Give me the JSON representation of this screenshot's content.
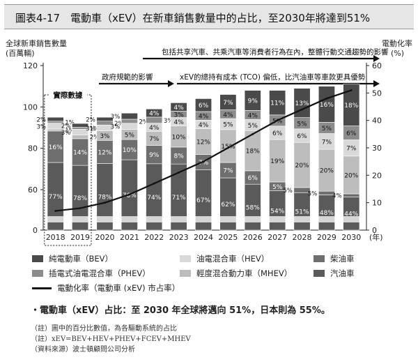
{
  "figure_title": "圖表4-17　電動車（xEV）在新車銷售數量中的占比，至2030年將達到51%",
  "chart_data": {
    "type": "bar",
    "left_axis_label_line1": "全球新車銷售數量",
    "left_axis_label_line2": "(百萬輛)",
    "right_axis_label_line1": "電動化率",
    "right_axis_label_line2": "(%)",
    "xunit": "(年)",
    "ylim": [
      0,
      120
    ],
    "yticks": [
      0,
      60,
      80,
      100,
      120
    ],
    "y2lim": [
      0,
      60
    ],
    "y2ticks": [
      0,
      10,
      20,
      30,
      40,
      50,
      60
    ],
    "years": [
      "2018",
      "2019",
      "2020",
      "2021",
      "2022",
      "2023",
      "2024",
      "2025",
      "2026",
      "2027",
      "2028",
      "2029",
      "2030"
    ],
    "totals": [
      95,
      92,
      95,
      97,
      99,
      102,
      104,
      106,
      108,
      108,
      109,
      110,
      111
    ],
    "series": [
      {
        "name": "純電動車 (BEV)",
        "color": "#4a4a4a",
        "values": [
          2,
          2,
          2,
          3,
          4,
          4,
          6,
          7,
          9,
          11,
          13,
          16,
          18
        ]
      },
      {
        "name": "插電式油電混合車 (PHEV)",
        "color": "#8c8c8c",
        "values": [
          1,
          1,
          2,
          2,
          3,
          3,
          4,
          4,
          4,
          5,
          5,
          5,
          6
        ]
      },
      {
        "name": "油電混合車 (HEV)",
        "color": "#d9d9d9",
        "values": [
          3,
          3,
          3,
          3,
          4,
          4,
          4,
          5,
          5,
          6,
          6,
          7,
          7
        ]
      },
      {
        "name": "輕度混合動力車 (MHEV)",
        "color": "#bdbdbd",
        "values": [
          1,
          2,
          5,
          5,
          7,
          10,
          12,
          15,
          18,
          19,
          20,
          20,
          20
        ]
      },
      {
        "name": "柴油車",
        "color": "#6e6e6e",
        "values": [
          16,
          14,
          12,
          10,
          9,
          8,
          7,
          7,
          6,
          5,
          5,
          5,
          4
        ]
      },
      {
        "name": "汽油車",
        "color": "#5a5a5a",
        "values": [
          77,
          78,
          78,
          76,
          74,
          71,
          67,
          62,
          58,
          54,
          51,
          48,
          44
        ]
      }
    ],
    "labels": [
      [
        "2%",
        "1%",
        "3%",
        "1%",
        "16%",
        "77%"
      ],
      [
        "2%",
        "1%",
        "3%",
        "2%",
        "14%",
        "78%"
      ],
      [
        "2%",
        "2%",
        "3%",
        "3%",
        "12%",
        "78%"
      ],
      [
        "3%",
        "2%",
        "3%",
        "5%",
        "10%",
        "76%"
      ],
      [
        "4%",
        "3%",
        "4%",
        "7%",
        "9%",
        "74%"
      ],
      [
        "4%",
        "3%",
        "4%",
        "10%",
        "8%",
        "71%"
      ],
      [
        "6%",
        "4%",
        "4%",
        "12%",
        "7%",
        "67%"
      ],
      [
        "7%",
        "4%",
        "5%",
        "15%",
        "7%",
        "62%"
      ],
      [
        "9%",
        "4%",
        "5%",
        "18%",
        "6%",
        "58%"
      ],
      [
        "11%",
        "5%",
        "6%",
        "19%",
        "5%",
        "54%"
      ],
      [
        "13%",
        "5%",
        "6%",
        "20%",
        "5%",
        "51%"
      ],
      [
        "16%",
        "5%",
        "7%",
        "20%",
        "5%",
        "48%"
      ],
      [
        "18%",
        "6%",
        "7%",
        "20%",
        "4%",
        "44%"
      ]
    ],
    "line": {
      "name": "電動化率（電動車 (xEV) 市占率）",
      "values": [
        7,
        8,
        10,
        13,
        17,
        21,
        25,
        30,
        35,
        40,
        44,
        48,
        51
      ]
    },
    "actual_data_label": "實際數據",
    "arrows": [
      {
        "text": "包括共享汽車、共乘汽車等消費者行為在內，整體行動交通趨勢的影響"
      },
      {
        "text": "政府規範的影響"
      },
      {
        "text": "xEV的總持有成本 (TCO) 偏低，比汽油車等車款更具優勢"
      }
    ]
  },
  "legend": {
    "bev": "純電動車（BEV）",
    "hev": "油電混合車（HEV）",
    "diesel": "柴油車",
    "phev": "插電式油電混合車（PHEV）",
    "mhev": "輕度混合動力車（MHEV）",
    "gasoline": "汽油車",
    "line": "電動化率（電動車 (xEV) 市占率）"
  },
  "bullet": "・電動車（xEV）占比：至 2030 年全球將邁向 51%，日本則為 55%。",
  "notes": [
    "（註）圖中的百分比數值，為各驅動系統的占比",
    "（註）xEV=BEV+HEV+PHEV+FCEV+MHEV",
    "（資料來源）波士頓顧問公司分析"
  ]
}
